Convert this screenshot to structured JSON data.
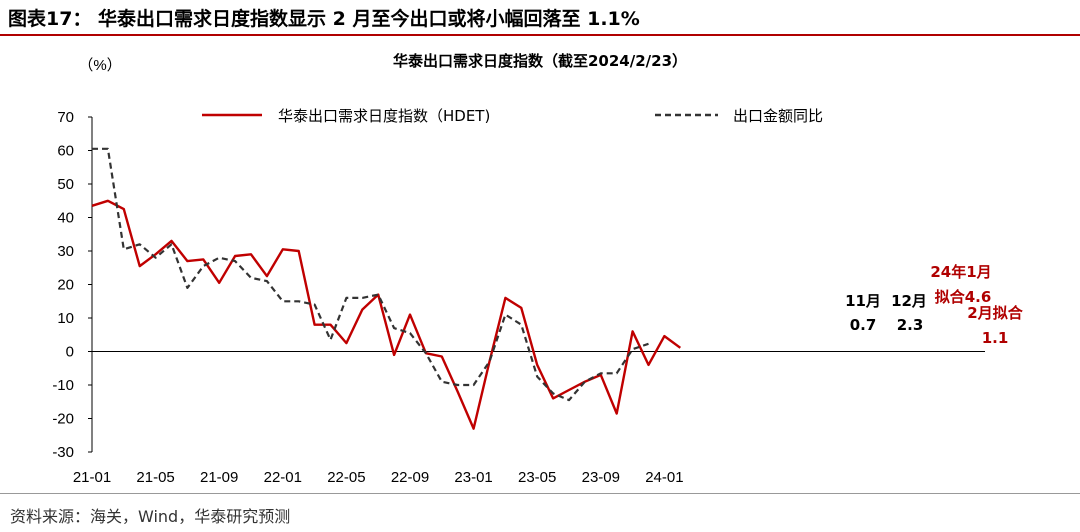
{
  "figure": {
    "title": "图表17： 华泰出口需求日度指数显示 2 月至今出口或将小幅回落至 1.1%",
    "source": "资料来源：海关，Wind，华泰研究预测"
  },
  "chart_data": {
    "type": "line",
    "title": "华泰出口需求日度指数（截至2024/2/23）",
    "ylabel": "（%）",
    "xlabel": "",
    "ylim": [
      -30,
      70
    ],
    "yticks": [
      70,
      60,
      50,
      40,
      30,
      20,
      10,
      0,
      -10,
      -20,
      -30
    ],
    "x_tick_labels": [
      "21-01",
      "21-05",
      "21-09",
      "22-01",
      "22-05",
      "22-09",
      "23-01",
      "23-05",
      "23-09",
      "24-01"
    ],
    "grid": false,
    "legend_placement": "top",
    "series": [
      {
        "name": "华泰出口需求日度指数（HDET)",
        "color": "#c00000",
        "style": "solid",
        "x": [
          "2021-01",
          "2021-02",
          "2021-03",
          "2021-04",
          "2021-05",
          "2021-06",
          "2021-07",
          "2021-08",
          "2021-09",
          "2021-10",
          "2021-11",
          "2021-12",
          "2022-01",
          "2022-02",
          "2022-03",
          "2022-04",
          "2022-05",
          "2022-06",
          "2022-07",
          "2022-08",
          "2022-09",
          "2022-10",
          "2022-11",
          "2022-12",
          "2023-01",
          "2023-02",
          "2023-03",
          "2023-04",
          "2023-05",
          "2023-06",
          "2023-07",
          "2023-08",
          "2023-09",
          "2023-10",
          "2023-11",
          "2023-12",
          "2024-01",
          "2024-02"
        ],
        "values": [
          43.5,
          45,
          42.5,
          25.5,
          29,
          33,
          27,
          27.5,
          20.5,
          28.5,
          29,
          22.5,
          30.5,
          30,
          8,
          8,
          2.5,
          12.5,
          17,
          -1,
          11,
          -0.5,
          -1.5,
          -12,
          -23,
          -3,
          16,
          13,
          -4,
          -14,
          -11.5,
          -9,
          -7,
          -18.5,
          6,
          -4,
          4.6,
          1.1
        ]
      },
      {
        "name": "出口金额同比",
        "color": "#333333",
        "style": "dashed",
        "x": [
          "2021-01",
          "2021-02",
          "2021-03",
          "2021-04",
          "2021-05",
          "2021-06",
          "2021-07",
          "2021-08",
          "2021-09",
          "2021-10",
          "2021-11",
          "2021-12",
          "2022-01",
          "2022-02",
          "2022-03",
          "2022-04",
          "2022-05",
          "2022-06",
          "2022-07",
          "2022-08",
          "2022-09",
          "2022-10",
          "2022-11",
          "2022-12",
          "2023-01",
          "2023-02",
          "2023-03",
          "2023-04",
          "2023-05",
          "2023-06",
          "2023-07",
          "2023-08",
          "2023-09",
          "2023-10",
          "2023-11",
          "2023-12"
        ],
        "values": [
          60.5,
          60.5,
          30.5,
          32,
          28,
          32,
          19,
          25.5,
          28,
          27,
          22,
          21,
          15,
          15,
          14,
          3.5,
          16,
          16,
          17,
          7,
          5.5,
          -0.5,
          -9,
          -10,
          -10,
          -3,
          11,
          8,
          -7.5,
          -12.5,
          -14.5,
          -9,
          -6.5,
          -6.5,
          0.7,
          2.3
        ]
      }
    ],
    "annotations": [
      {
        "l1": "11月",
        "l2": "0.7",
        "x": "2023-11",
        "color": "black"
      },
      {
        "l1": "12月",
        "l2": "2.3",
        "x": "2023-12",
        "color": "black"
      },
      {
        "l1": "24年1月",
        "l2": "拟合4.6",
        "x": "2024-01",
        "color": "red"
      },
      {
        "l1": "2月拟合",
        "l2": "1.1",
        "x": "2024-02",
        "color": "red"
      }
    ]
  }
}
